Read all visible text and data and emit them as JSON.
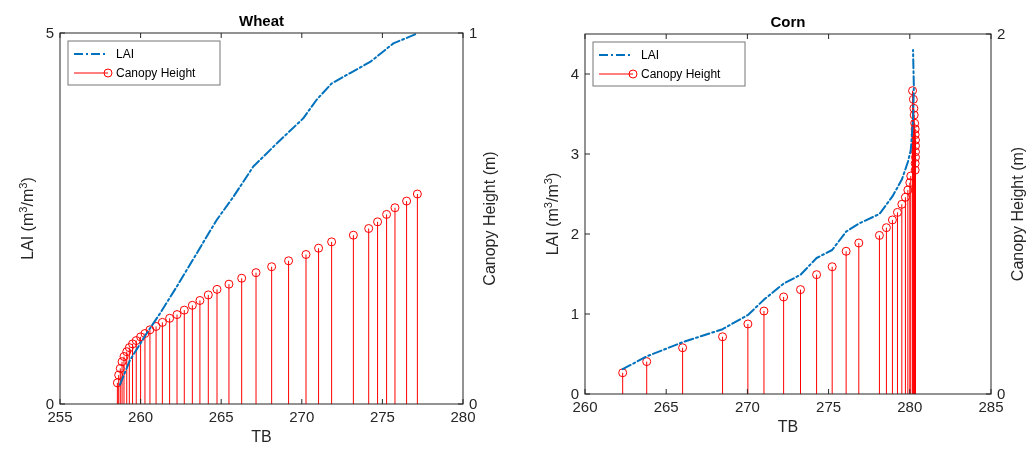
{
  "chart_data": [
    {
      "type": "line",
      "title": "Wheat",
      "xlabel": "TB",
      "ylabel": "LAI (m$^{3}$/m$^{3}$)",
      "y2label": "Canopy Height (m)",
      "xlim": [
        255,
        280
      ],
      "xticks": [
        255,
        260,
        265,
        270,
        275,
        280
      ],
      "ylim": [
        0,
        5
      ],
      "yticks": [
        0,
        5
      ],
      "y2lim": [
        0,
        1
      ],
      "y2ticks": [
        0,
        1
      ],
      "legend": "top left",
      "series": [
        {
          "name": "LAI",
          "color": "#0072bd",
          "line_style": "dashed",
          "marker": "none",
          "x": [
            258.72,
            259.34,
            260.37,
            261.2,
            262.24,
            263.48,
            264.72,
            265.75,
            266.99,
            268.44,
            270.09,
            270.92,
            271.85,
            273.0,
            274.24,
            275.68,
            277.13
          ],
          "values": [
            0.26,
            0.59,
            0.95,
            1.22,
            1.58,
            2.03,
            2.48,
            2.79,
            3.2,
            3.51,
            3.85,
            4.1,
            4.32,
            4.46,
            4.61,
            4.86,
            4.99
          ]
        },
        {
          "name": "Canopy Height",
          "type": "lollipop",
          "axis": "y2",
          "color": "#ff0000",
          "marker": "circle",
          "x": [
            258.56,
            258.64,
            258.74,
            258.85,
            258.97,
            259.14,
            259.3,
            259.5,
            259.73,
            260.0,
            260.27,
            260.58,
            260.96,
            261.35,
            261.8,
            262.26,
            262.71,
            263.21,
            263.68,
            264.2,
            264.74,
            265.48,
            266.27,
            267.16,
            268.13,
            269.18,
            270.26,
            271.04,
            271.85,
            273.2,
            274.15,
            274.7,
            275.26,
            275.78,
            276.5,
            277.17
          ],
          "values": [
            0.057,
            0.078,
            0.096,
            0.114,
            0.128,
            0.141,
            0.152,
            0.162,
            0.171,
            0.181,
            0.19,
            0.2,
            0.209,
            0.22,
            0.231,
            0.241,
            0.253,
            0.266,
            0.279,
            0.294,
            0.309,
            0.323,
            0.339,
            0.354,
            0.37,
            0.386,
            0.403,
            0.42,
            0.437,
            0.455,
            0.473,
            0.491,
            0.511,
            0.529,
            0.547,
            0.566
          ]
        }
      ]
    },
    {
      "type": "line",
      "title": "Corn",
      "xlabel": "TB",
      "ylabel": "LAI (m$^{3}$/m$^{3}$)",
      "y2label": "Canopy Height (m)",
      "xlim": [
        260,
        285
      ],
      "xticks": [
        260,
        265,
        270,
        275,
        280,
        285
      ],
      "ylim": [
        0,
        4.5
      ],
      "yticks": [
        0,
        1,
        2,
        3,
        4
      ],
      "y2lim": [
        0,
        2
      ],
      "y2ticks": [
        0,
        2
      ],
      "legend": "top left",
      "series": [
        {
          "name": "LAI",
          "color": "#0072bd",
          "line_style": "dashed",
          "marker": "none",
          "x": [
            262.32,
            263.8,
            266.05,
            268.47,
            270.05,
            271.02,
            272.23,
            273.27,
            274.26,
            275.22,
            276.08,
            276.86,
            278.13,
            278.93,
            279.51,
            279.88,
            280.06,
            280.2,
            280.25,
            280.2
          ],
          "values": [
            0.31,
            0.47,
            0.65,
            0.81,
            0.99,
            1.18,
            1.38,
            1.49,
            1.7,
            1.8,
            2.03,
            2.13,
            2.25,
            2.47,
            2.68,
            2.9,
            3.05,
            3.43,
            3.84,
            4.3
          ]
        },
        {
          "name": "Canopy Height",
          "type": "lollipop",
          "axis": "y2",
          "color": "#ff0000",
          "marker": "circle",
          "x": [
            262.32,
            263.8,
            266.01,
            268.47,
            270.03,
            271.02,
            272.23,
            273.27,
            274.26,
            275.22,
            276.08,
            276.86,
            278.13,
            278.56,
            278.93,
            279.24,
            279.51,
            279.73,
            279.88,
            280.0,
            280.06,
            280.33,
            280.33,
            280.35,
            280.35,
            280.35,
            280.35,
            280.33,
            280.33,
            280.3,
            280.27,
            280.25,
            280.22,
            280.17
          ],
          "values": [
            0.118,
            0.18,
            0.257,
            0.318,
            0.389,
            0.461,
            0.539,
            0.58,
            0.663,
            0.707,
            0.793,
            0.839,
            0.881,
            0.924,
            0.967,
            1.009,
            1.054,
            1.093,
            1.133,
            1.174,
            1.211,
            1.244,
            1.281,
            1.315,
            1.346,
            1.379,
            1.411,
            1.441,
            1.472,
            1.504,
            1.55,
            1.587,
            1.637,
            1.685
          ]
        }
      ]
    }
  ]
}
